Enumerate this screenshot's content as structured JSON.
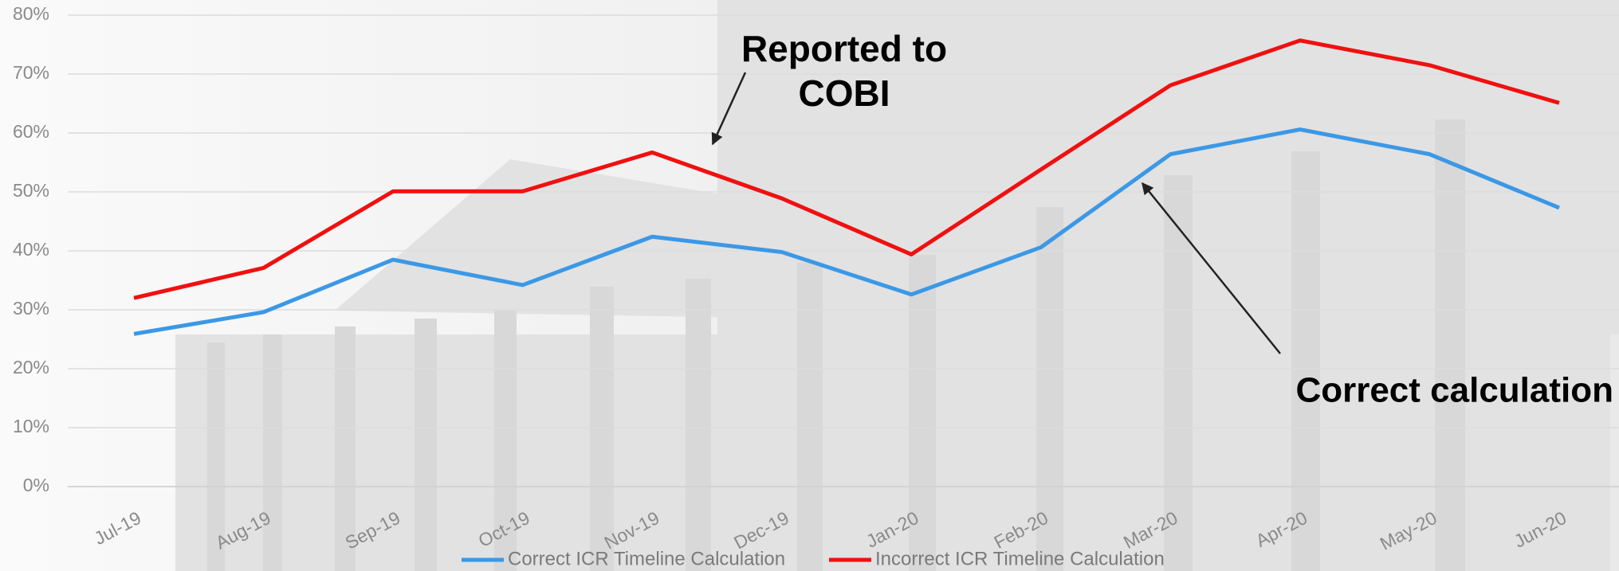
{
  "chart_data": {
    "type": "line",
    "categories": [
      "Jul-19",
      "Aug-19",
      "Sep-19",
      "Oct-19",
      "Nov-19",
      "Dec-19",
      "Jan-20",
      "Feb-20",
      "Mar-20",
      "Apr-20",
      "May-20",
      "Jun-20"
    ],
    "series": [
      {
        "name": "Correct ICR Timeline Calculation",
        "color": "#3b98e6",
        "values": [
          25.9,
          29.6,
          38.5,
          34.2,
          42.4,
          39.8,
          32.6,
          40.6,
          56.4,
          60.6,
          56.4,
          47.3
        ]
      },
      {
        "name": "Incorrect ICR Timeline Calculation",
        "color": "#f01010",
        "values": [
          32.0,
          37.1,
          50.1,
          50.1,
          56.7,
          48.9,
          39.4,
          53.8,
          68.1,
          75.7,
          71.5,
          65.1
        ]
      }
    ],
    "ylim": [
      0,
      80
    ],
    "yticks": [
      {
        "value": 0,
        "label": "0%"
      },
      {
        "value": 10,
        "label": "10%"
      },
      {
        "value": 20,
        "label": "20%"
      },
      {
        "value": 30,
        "label": "30%"
      },
      {
        "value": 40,
        "label": "40%"
      },
      {
        "value": 50,
        "label": "50%"
      },
      {
        "value": 60,
        "label": "60%"
      },
      {
        "value": 70,
        "label": "70%"
      },
      {
        "value": 80,
        "label": "80%"
      }
    ],
    "grid": true,
    "legend": "bottom",
    "annotations": [
      {
        "lines": [
          "Reported to",
          "COBI"
        ]
      },
      {
        "lines": [
          "Correct calculation"
        ]
      }
    ]
  }
}
